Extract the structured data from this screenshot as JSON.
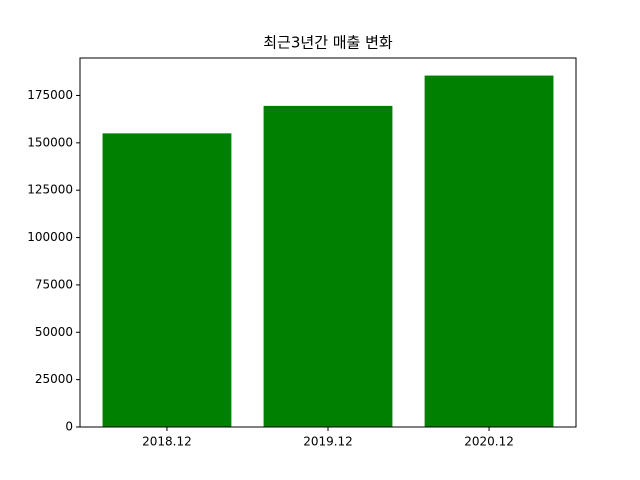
{
  "chart_data": {
    "type": "bar",
    "title": "최근3년간 매출 변화",
    "categories": [
      "2018.12",
      "2019.12",
      "2020.12"
    ],
    "values": [
      155000,
      169500,
      185500
    ],
    "color": "#008000",
    "xlim": [
      -0.54,
      2.54
    ],
    "ylim": [
      0,
      194775
    ],
    "yticks": [
      0,
      25000,
      50000,
      75000,
      100000,
      125000,
      150000,
      175000
    ]
  }
}
